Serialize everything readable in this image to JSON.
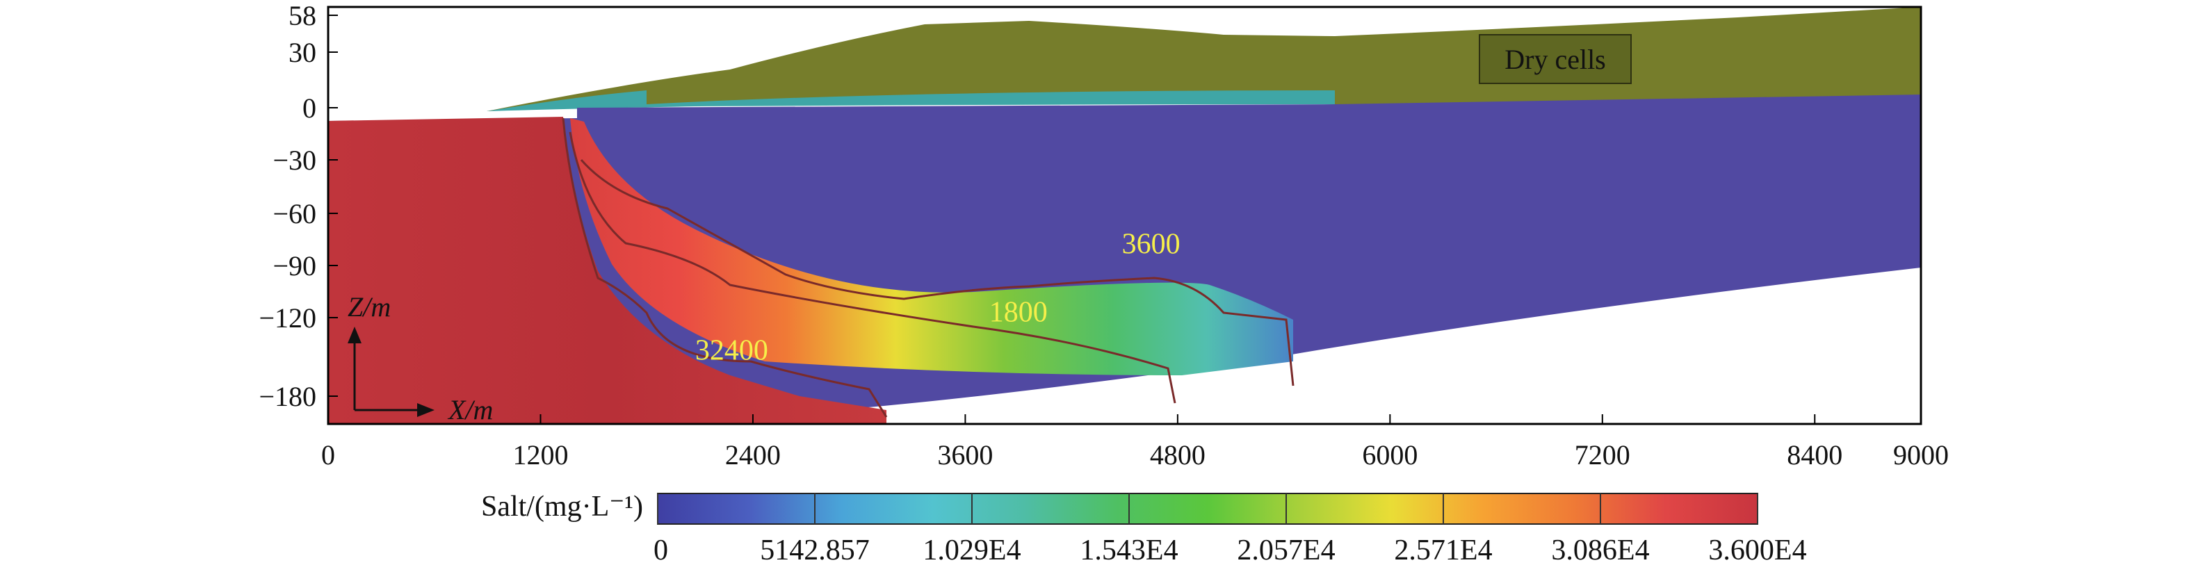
{
  "chart_data": {
    "type": "heatmap",
    "x_ticks": [
      0,
      1200,
      2400,
      3600,
      4800,
      6000,
      7200,
      8400,
      9000
    ],
    "y_ticks": [
      58,
      30,
      0,
      -30,
      -60,
      -90,
      -120,
      -180
    ],
    "xlim": [
      0,
      9000
    ],
    "axes_labels": {
      "z": "Z/m",
      "x": "X/m"
    },
    "dry_label": "Dry cells",
    "contour_labels": [
      {
        "text": "3600",
        "x": 4650,
        "z": -83
      },
      {
        "text": "1800",
        "x": 3900,
        "z": -123
      },
      {
        "text": "32400",
        "x": 2280,
        "z": -152
      }
    ],
    "contour_levels": [
      1800,
      3600,
      32400
    ],
    "colorbar": {
      "label": "Salt/(mg·L⁻¹)",
      "min": 0,
      "max": 36000,
      "tick_labels": [
        "0",
        "5142.857",
        "1.029E4",
        "1.543E4",
        "2.057E4",
        "2.571E4",
        "3.086E4",
        "3.600E4"
      ],
      "colors": [
        "#3f3fa3",
        "#4b5fc0",
        "#4aa4d8",
        "#53c3cf",
        "#4fbda6",
        "#4fc063",
        "#5bc73c",
        "#a8d03a",
        "#e9dd36",
        "#f6a333",
        "#ef7a36",
        "#e04646",
        "#c8353f"
      ]
    },
    "colors": {
      "dry": "#767d2b",
      "dry_label_fill": "#5a6223",
      "fresh": "#5149a2",
      "salt": "#c3383b",
      "contour": "#7a2a2a",
      "contour_label": "#f6ef4a"
    }
  }
}
